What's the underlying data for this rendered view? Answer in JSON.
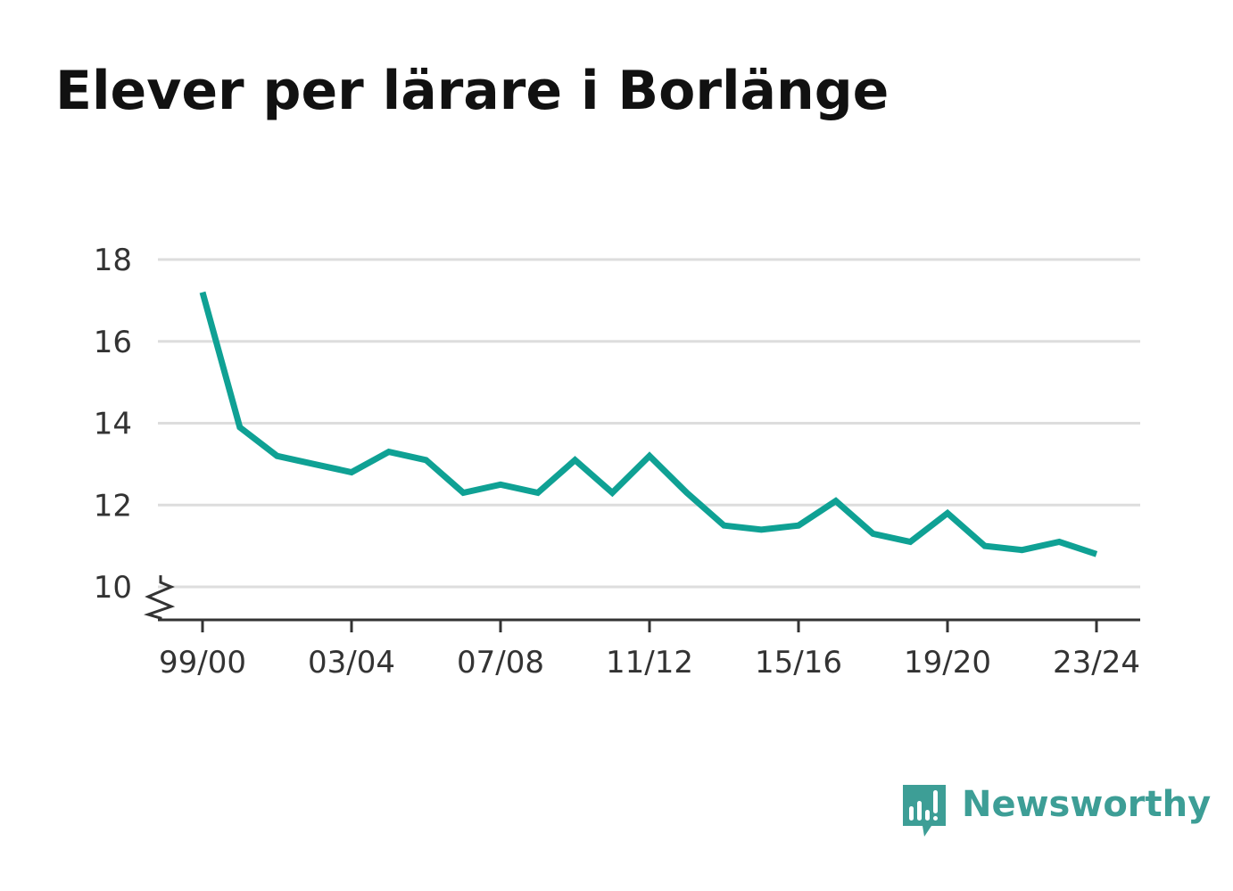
{
  "title": "Elever per lärare i Borlänge",
  "brand": {
    "name": "Newsworthy",
    "icon": "bar-chart-speech-bubble-icon",
    "color": "#3d9e96"
  },
  "colors": {
    "line": "#0fa194",
    "grid": "#dddddd",
    "axis": "#333333"
  },
  "chart_data": {
    "type": "line",
    "title": "Elever per lärare i Borlänge",
    "xlabel": "",
    "ylabel": "",
    "ylim": [
      9.2,
      18
    ],
    "y_ticks": [
      10,
      12,
      14,
      16,
      18
    ],
    "y_tick_labels": [
      "10",
      "12",
      "14",
      "16",
      "18"
    ],
    "x_tick_labels": [
      "99/00",
      "03/04",
      "07/08",
      "11/12",
      "15/16",
      "19/20",
      "23/24"
    ],
    "x_tick_index": [
      0,
      4,
      8,
      12,
      16,
      20,
      24
    ],
    "grid": true,
    "axis_break": true,
    "legend": "none",
    "x": [
      "99/00",
      "00/01",
      "01/02",
      "02/03",
      "03/04",
      "04/05",
      "05/06",
      "06/07",
      "07/08",
      "08/09",
      "09/10",
      "10/11",
      "11/12",
      "12/13",
      "13/14",
      "14/15",
      "15/16",
      "16/17",
      "17/18",
      "18/19",
      "19/20",
      "20/21",
      "21/22",
      "22/23",
      "23/24"
    ],
    "series": [
      {
        "values": [
          17.2,
          13.9,
          13.2,
          13.0,
          12.8,
          13.3,
          13.1,
          12.3,
          12.5,
          12.3,
          13.1,
          12.3,
          13.2,
          12.3,
          11.5,
          11.4,
          11.5,
          12.1,
          11.3,
          11.1,
          11.8,
          11.0,
          10.9,
          11.1,
          10.8
        ]
      }
    ]
  }
}
